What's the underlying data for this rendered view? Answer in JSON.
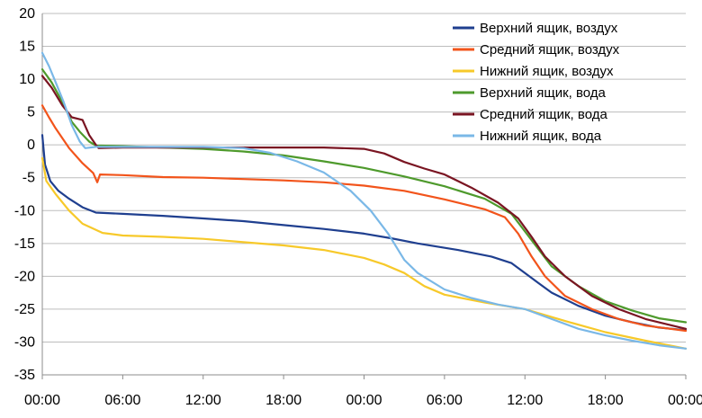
{
  "chart_data": {
    "type": "line",
    "title": "",
    "xlabel": "",
    "ylabel": "",
    "ylim": [
      -35,
      20
    ],
    "y_ticks": [
      20,
      15,
      10,
      5,
      0,
      -5,
      -10,
      -15,
      -20,
      -25,
      -30,
      -35
    ],
    "y_tick_labels": [
      "20",
      "15",
      "10",
      "5",
      "0",
      "-5",
      "-10",
      "-15",
      "-20",
      "-25",
      "-30",
      "-35"
    ],
    "xlim": [
      0,
      48
    ],
    "x_ticks": [
      0,
      6,
      12,
      18,
      24,
      30,
      36,
      42,
      48
    ],
    "x_tick_labels": [
      "00:00",
      "06:00",
      "12:00",
      "18:00",
      "00:00",
      "06:00",
      "12:00",
      "18:00",
      "00:00"
    ],
    "grid": "horizontal",
    "legend_position": "top-right",
    "series": [
      {
        "name": "Верхний ящик, воздух",
        "color": "#1f3f8f",
        "points": [
          [
            0,
            1.5
          ],
          [
            0.2,
            -3
          ],
          [
            0.6,
            -5.5
          ],
          [
            1.2,
            -7
          ],
          [
            2,
            -8.2
          ],
          [
            3,
            -9.5
          ],
          [
            4,
            -10.3
          ],
          [
            6,
            -10.5
          ],
          [
            9,
            -10.8
          ],
          [
            12,
            -11.2
          ],
          [
            15,
            -11.6
          ],
          [
            18,
            -12.2
          ],
          [
            21,
            -12.8
          ],
          [
            24,
            -13.5
          ],
          [
            26,
            -14.2
          ],
          [
            28,
            -15
          ],
          [
            31,
            -16
          ],
          [
            33.5,
            -17
          ],
          [
            35,
            -18
          ],
          [
            36,
            -19.5
          ],
          [
            37,
            -21
          ],
          [
            38,
            -22.5
          ],
          [
            40,
            -24.5
          ],
          [
            42,
            -26
          ],
          [
            44,
            -27
          ],
          [
            46,
            -27.8
          ],
          [
            48,
            -28.2
          ]
        ]
      },
      {
        "name": "Средний ящик, воздух",
        "color": "#f2541b",
        "points": [
          [
            0,
            6
          ],
          [
            0.5,
            4.2
          ],
          [
            1,
            2.5
          ],
          [
            2,
            -0.5
          ],
          [
            3,
            -2.8
          ],
          [
            3.8,
            -4.3
          ],
          [
            4.1,
            -5.7
          ],
          [
            4.3,
            -4.5
          ],
          [
            6,
            -4.6
          ],
          [
            9,
            -4.9
          ],
          [
            12,
            -5
          ],
          [
            15,
            -5.2
          ],
          [
            18,
            -5.4
          ],
          [
            21,
            -5.7
          ],
          [
            24,
            -6.2
          ],
          [
            27,
            -7
          ],
          [
            30,
            -8.3
          ],
          [
            33,
            -9.8
          ],
          [
            34.5,
            -11
          ],
          [
            35.5,
            -13.5
          ],
          [
            36.5,
            -17
          ],
          [
            37.5,
            -20
          ],
          [
            39,
            -23
          ],
          [
            41,
            -25
          ],
          [
            43,
            -26.5
          ],
          [
            45,
            -27.5
          ],
          [
            48,
            -28.3
          ]
        ]
      },
      {
        "name": "Нижний ящик, воздух",
        "color": "#f7c92a",
        "points": [
          [
            0,
            -2
          ],
          [
            0.3,
            -5.5
          ],
          [
            1,
            -7.5
          ],
          [
            2,
            -10
          ],
          [
            3,
            -12
          ],
          [
            4.5,
            -13.4
          ],
          [
            6,
            -13.8
          ],
          [
            9,
            -14
          ],
          [
            12,
            -14.3
          ],
          [
            15,
            -14.8
          ],
          [
            18,
            -15.3
          ],
          [
            21,
            -16
          ],
          [
            24,
            -17.2
          ],
          [
            25.5,
            -18.2
          ],
          [
            27,
            -19.5
          ],
          [
            28.5,
            -21.5
          ],
          [
            30,
            -22.8
          ],
          [
            33,
            -24
          ],
          [
            36,
            -25
          ],
          [
            39,
            -26.8
          ],
          [
            42,
            -28.5
          ],
          [
            45,
            -29.8
          ],
          [
            48,
            -31
          ]
        ]
      },
      {
        "name": "Верхний ящик, вода",
        "color": "#4e9a2c",
        "points": [
          [
            0,
            11.5
          ],
          [
            0.7,
            9.5
          ],
          [
            1.5,
            6.5
          ],
          [
            2.2,
            3.5
          ],
          [
            2.8,
            2
          ],
          [
            3.5,
            0.5
          ],
          [
            4,
            -0.1
          ],
          [
            6,
            -0.2
          ],
          [
            9,
            -0.4
          ],
          [
            12,
            -0.6
          ],
          [
            15,
            -1
          ],
          [
            18,
            -1.6
          ],
          [
            21,
            -2.5
          ],
          [
            24,
            -3.5
          ],
          [
            27,
            -4.8
          ],
          [
            30,
            -6.3
          ],
          [
            33,
            -8.2
          ],
          [
            35,
            -10.5
          ],
          [
            36.5,
            -14.5
          ],
          [
            38,
            -18.5
          ],
          [
            40,
            -21.5
          ],
          [
            42,
            -23.8
          ],
          [
            44,
            -25.2
          ],
          [
            46,
            -26.4
          ],
          [
            48,
            -27
          ]
        ]
      },
      {
        "name": "Средний ящик, вода",
        "color": "#7a1522",
        "points": [
          [
            0,
            10.5
          ],
          [
            0.7,
            8.7
          ],
          [
            1.5,
            6
          ],
          [
            2.2,
            4.2
          ],
          [
            2.6,
            4
          ],
          [
            3,
            3.8
          ],
          [
            3.5,
            1.5
          ],
          [
            4,
            0
          ],
          [
            4.2,
            -0.5
          ],
          [
            6,
            -0.4
          ],
          [
            9,
            -0.4
          ],
          [
            12,
            -0.4
          ],
          [
            15,
            -0.4
          ],
          [
            18,
            -0.4
          ],
          [
            21,
            -0.4
          ],
          [
            24,
            -0.6
          ],
          [
            25.5,
            -1.3
          ],
          [
            27,
            -2.6
          ],
          [
            28.5,
            -3.6
          ],
          [
            30,
            -4.5
          ],
          [
            32,
            -6.5
          ],
          [
            34,
            -8.8
          ],
          [
            35.5,
            -11.2
          ],
          [
            36.5,
            -14
          ],
          [
            37.5,
            -17
          ],
          [
            39,
            -20
          ],
          [
            41,
            -23
          ],
          [
            43,
            -25
          ],
          [
            45,
            -26.5
          ],
          [
            48,
            -28
          ]
        ]
      },
      {
        "name": "Нижний ящик, вода",
        "color": "#7ab8e7",
        "points": [
          [
            0,
            14
          ],
          [
            0.5,
            12
          ],
          [
            1,
            9.5
          ],
          [
            1.6,
            6.5
          ],
          [
            2.2,
            3
          ],
          [
            2.8,
            0.5
          ],
          [
            3.2,
            -0.5
          ],
          [
            4,
            -0.3
          ],
          [
            6,
            -0.3
          ],
          [
            9,
            -0.3
          ],
          [
            12,
            -0.3
          ],
          [
            15,
            -0.5
          ],
          [
            17,
            -1.2
          ],
          [
            19,
            -2.5
          ],
          [
            21,
            -4.2
          ],
          [
            23,
            -7
          ],
          [
            24.5,
            -10
          ],
          [
            25.8,
            -13.5
          ],
          [
            27,
            -17.5
          ],
          [
            28,
            -19.5
          ],
          [
            30,
            -22
          ],
          [
            32,
            -23.3
          ],
          [
            34,
            -24.3
          ],
          [
            36,
            -25
          ],
          [
            38,
            -26.5
          ],
          [
            40,
            -28
          ],
          [
            42,
            -29
          ],
          [
            44,
            -29.8
          ],
          [
            46,
            -30.5
          ],
          [
            48,
            -31
          ]
        ]
      }
    ]
  }
}
